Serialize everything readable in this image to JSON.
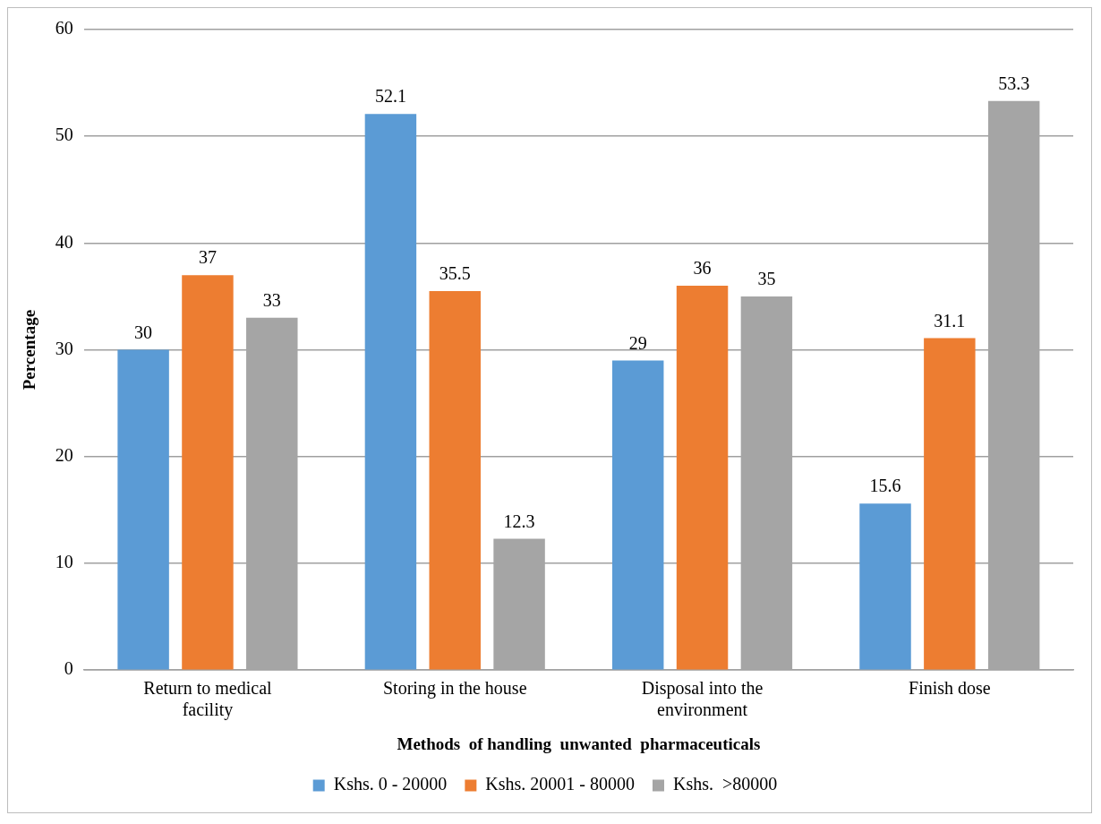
{
  "chart_data": {
    "type": "bar",
    "xlabel": "Methods  of handling  unwanted  pharmaceuticals",
    "ylabel": "Percentage",
    "categories": [
      "Return to medical facility",
      "Storing in the house",
      "Disposal into the environment",
      "Finish dose"
    ],
    "series": [
      {
        "name": "Kshs. 0 - 20000",
        "color": "#5b9bd5",
        "values": [
          30,
          52.1,
          29,
          15.6
        ]
      },
      {
        "name": "Kshs. 20001 - 80000",
        "color": "#ed7d31",
        "values": [
          37,
          35.5,
          36,
          31.1
        ]
      },
      {
        "name": "Kshs.  >80000",
        "color": "#a5a5a5",
        "values": [
          33,
          12.3,
          35,
          53.3
        ]
      }
    ],
    "ylim": [
      0,
      60
    ],
    "yticks": [
      0,
      10,
      20,
      30,
      40,
      50,
      60
    ],
    "grid": "y",
    "legend": "bottom",
    "data_labels": true
  }
}
